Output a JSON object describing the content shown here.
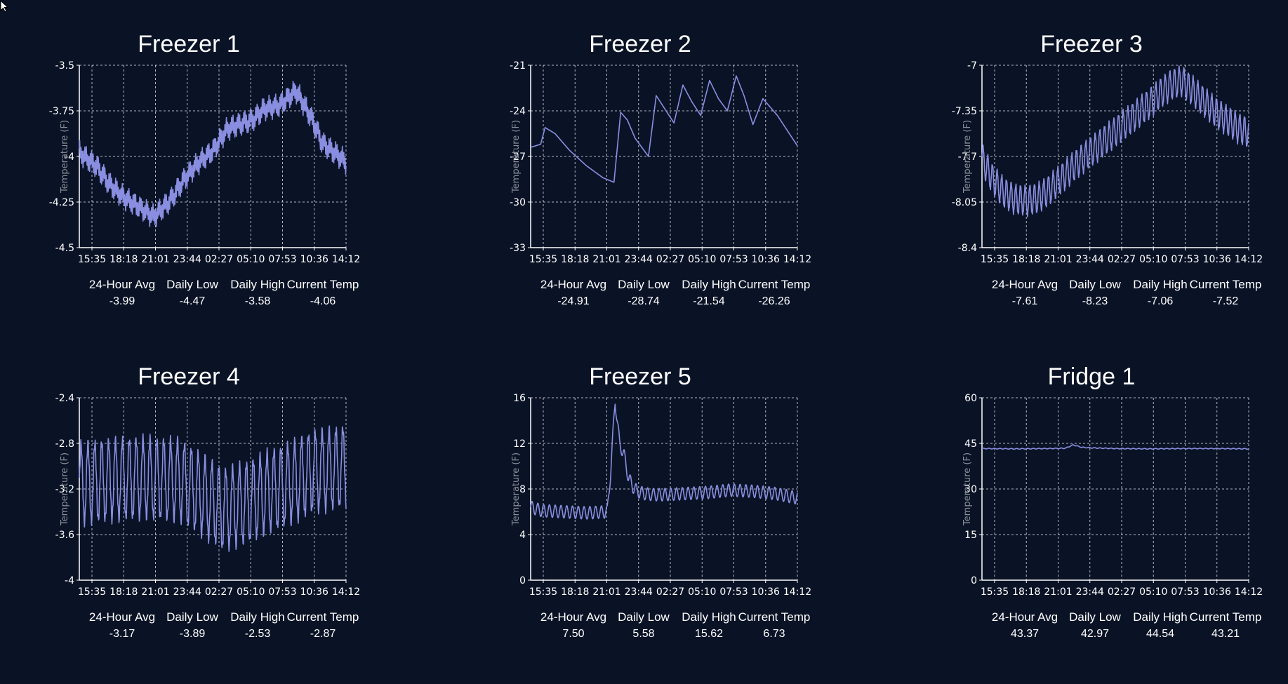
{
  "colors": {
    "background": "#0a1326",
    "line": "#8a8ee0",
    "grid": "#cfd3dc",
    "text": "#ffffff",
    "axis_label": "#8a8f99"
  },
  "stat_labels": [
    "24-Hour Avg",
    "Daily Low",
    "Daily High",
    "Current Temp"
  ],
  "chart_data": [
    {
      "type": "line",
      "title": "Freezer 1",
      "ylabel": "Temperature (F)",
      "x_ticks": [
        "15:35",
        "18:18",
        "21:01",
        "23:44",
        "02:27",
        "05:10",
        "07:53",
        "10:36",
        "14:12"
      ],
      "y_ticks": [
        "-3.5",
        "-3.75",
        "-4",
        "-4.25",
        "-4.5"
      ],
      "ylim": [
        -4.5,
        -3.5
      ],
      "grid": true,
      "shape": {
        "hours": [
          0,
          1.5,
          2.7,
          3.9,
          5.2,
          6.7,
          8.2,
          9.5,
          10.8,
          12,
          13.3,
          14.6,
          15.6,
          16.6,
          18,
          19.5,
          20.8,
          21.9,
          23,
          24
        ],
        "values": [
          -3.98,
          -4.05,
          -4.15,
          -4.22,
          -4.27,
          -4.33,
          -4.24,
          -4.12,
          -4.03,
          -3.97,
          -3.85,
          -3.82,
          -3.8,
          -3.74,
          -3.72,
          -3.64,
          -3.78,
          -3.93,
          -3.98,
          -4.03
        ]
      },
      "noise": {
        "amplitude": 0.045,
        "period_hours": 0.12,
        "second_amplitude": 0.025,
        "second_period_hours": 0.55
      },
      "stats": {
        "avg": "-3.99",
        "low": "-4.47",
        "high": "-3.58",
        "current": "-4.06"
      }
    },
    {
      "type": "line",
      "title": "Freezer 2",
      "ylabel": "Temperature (F)",
      "x_ticks": [
        "15:35",
        "18:18",
        "21:01",
        "23:44",
        "02:27",
        "05:10",
        "07:53",
        "10:36",
        "14:12"
      ],
      "y_ticks": [
        "-21",
        "-24",
        "-27",
        "-30",
        "-33"
      ],
      "ylim": [
        -33,
        -21
      ],
      "grid": true,
      "shape": {
        "hours": [
          0,
          0.9,
          1.3,
          2.2,
          3.5,
          5,
          6.5,
          7.5,
          8.1,
          8.7,
          9.4,
          10.6,
          11.3,
          12.1,
          12.9,
          13.7,
          14.5,
          15.3,
          16.1,
          16.9,
          17.7,
          18.5,
          19.2,
          20,
          20.9,
          22.2,
          24
        ],
        "values": [
          -26.4,
          -26.2,
          -25.1,
          -25.5,
          -26.6,
          -27.6,
          -28.4,
          -28.7,
          -24.1,
          -24.6,
          -25.8,
          -27.0,
          -23.0,
          -23.9,
          -24.8,
          -22.3,
          -23.4,
          -24.3,
          -22.0,
          -23.2,
          -24.0,
          -21.7,
          -23.0,
          -24.9,
          -23.2,
          -24.3,
          -26.3
        ]
      },
      "noise": {
        "amplitude": 0,
        "period_hours": 1,
        "second_amplitude": 0,
        "second_period_hours": 1
      },
      "stats": {
        "avg": "-24.91",
        "low": "-28.74",
        "high": "-21.54",
        "current": "-26.26"
      }
    },
    {
      "type": "line",
      "title": "Freezer 3",
      "ylabel": "Temperature (F)",
      "x_ticks": [
        "15:35",
        "18:18",
        "21:01",
        "23:44",
        "02:27",
        "05:10",
        "07:53",
        "10:36",
        "14:12"
      ],
      "y_ticks": [
        "-7",
        "-7.35",
        "-7.7",
        "-8.05",
        "-8.4"
      ],
      "ylim": [
        -8.4,
        -7
      ],
      "grid": true,
      "shape": {
        "hours": [
          0,
          1,
          2,
          3,
          4,
          5,
          6,
          7,
          8,
          9,
          10,
          11,
          12,
          13,
          14,
          15,
          16,
          17,
          18,
          19,
          20,
          21,
          22,
          23,
          24
        ],
        "values": [
          -7.72,
          -7.88,
          -7.98,
          -8.03,
          -8.04,
          -8.02,
          -7.96,
          -7.88,
          -7.8,
          -7.72,
          -7.65,
          -7.58,
          -7.51,
          -7.44,
          -7.37,
          -7.3,
          -7.22,
          -7.15,
          -7.12,
          -7.2,
          -7.28,
          -7.36,
          -7.42,
          -7.48,
          -7.52
        ]
      },
      "noise": {
        "amplitude": 0.11,
        "period_hours": 0.42,
        "second_amplitude": 0.015,
        "second_period_hours": 0.09
      },
      "stats": {
        "avg": "-7.61",
        "low": "-8.23",
        "high": "-7.06",
        "current": "-7.52"
      }
    },
    {
      "type": "line",
      "title": "Freezer 4",
      "ylabel": "Temperature (F)",
      "x_ticks": [
        "15:35",
        "18:18",
        "21:01",
        "23:44",
        "02:27",
        "05:10",
        "07:53",
        "10:36",
        "14:12"
      ],
      "y_ticks": [
        "-2.4",
        "-2.8",
        "-3.2",
        "-3.6",
        "-4"
      ],
      "ylim": [
        -4,
        -2.4
      ],
      "grid": true,
      "shape": {
        "hours": [
          0,
          3,
          6,
          9,
          11,
          13,
          15,
          17,
          19,
          21,
          24
        ],
        "values": [
          -3.15,
          -3.12,
          -3.1,
          -3.12,
          -3.25,
          -3.38,
          -3.32,
          -3.22,
          -3.15,
          -3.05,
          -3.0
        ]
      },
      "noise": {
        "amplitude": 0.34,
        "period_hours": 0.62,
        "second_amplitude": 0.05,
        "second_period_hours": 0.13
      },
      "stats": {
        "avg": "-3.17",
        "low": "-3.89",
        "high": "-2.53",
        "current": "-2.87"
      }
    },
    {
      "type": "line",
      "title": "Freezer 5",
      "ylabel": "Temperature (F)",
      "x_ticks": [
        "15:35",
        "18:18",
        "21:01",
        "23:44",
        "02:27",
        "05:10",
        "07:53",
        "10:36",
        "14:12"
      ],
      "y_ticks": [
        "16",
        "12",
        "8",
        "4",
        "0"
      ],
      "ylim": [
        0,
        16
      ],
      "grid": true,
      "shape": {
        "hours": [
          0,
          1,
          3,
          5,
          6.9,
          7.2,
          7.6,
          8.0,
          8.4,
          8.8,
          9.2,
          9.6,
          10.2,
          11,
          12,
          14,
          16,
          18,
          20,
          22,
          24
        ],
        "values": [
          6.4,
          6.1,
          6.0,
          5.9,
          6.0,
          9.5,
          15.8,
          12.0,
          11.0,
          9.0,
          8.2,
          7.8,
          7.6,
          7.5,
          7.5,
          7.6,
          7.7,
          7.9,
          7.8,
          7.6,
          7.2
        ]
      },
      "noise": {
        "amplitude": 0.55,
        "period_hours": 0.52,
        "second_amplitude": 0,
        "second_period_hours": 1
      },
      "stats": {
        "avg": "7.50",
        "low": "5.58",
        "high": "15.62",
        "current": "6.73"
      }
    },
    {
      "type": "line",
      "title": "Fridge 1",
      "ylabel": "Temperature (F)",
      "x_ticks": [
        "15:35",
        "18:18",
        "21:01",
        "23:44",
        "02:27",
        "05:10",
        "07:53",
        "10:36",
        "14:12"
      ],
      "y_ticks": [
        "60",
        "45",
        "30",
        "15",
        "0"
      ],
      "ylim": [
        0,
        60
      ],
      "grid": true,
      "shape": {
        "hours": [
          0,
          3,
          6,
          7.5,
          8.2,
          9,
          10,
          12,
          15,
          18,
          21,
          24
        ],
        "values": [
          43.3,
          43.2,
          43.3,
          43.4,
          44.5,
          43.7,
          43.5,
          43.3,
          43.2,
          43.3,
          43.3,
          43.2
        ]
      },
      "noise": {
        "amplitude": 0.12,
        "period_hours": 0.5,
        "second_amplitude": 0,
        "second_period_hours": 1
      },
      "stats": {
        "avg": "43.37",
        "low": "42.97",
        "high": "44.54",
        "current": "43.21"
      }
    }
  ]
}
